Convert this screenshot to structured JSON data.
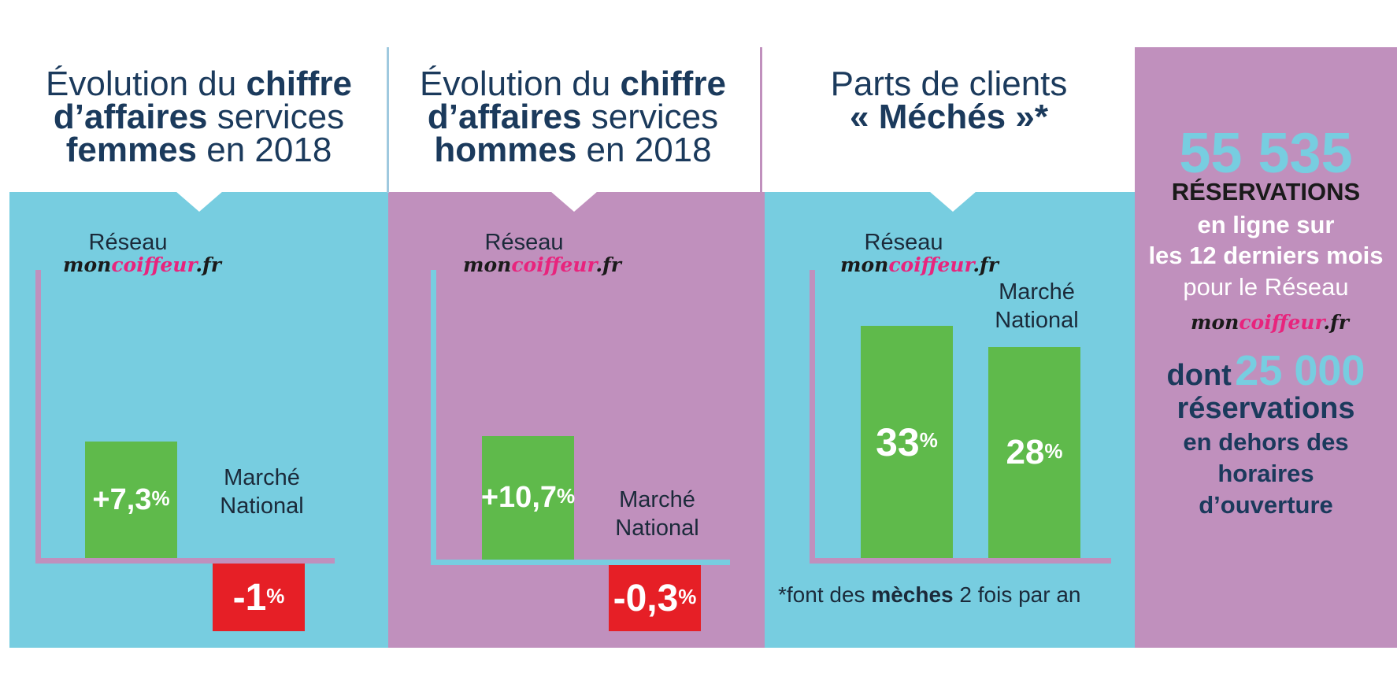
{
  "colors": {
    "teal": "#77cde0",
    "purple": "#c090bd",
    "green": "#5fba4b",
    "red": "#e61f26",
    "navy": "#1b3a5c",
    "pink": "#e8247d"
  },
  "logo": {
    "part1": "mon",
    "part2": "coiffeur",
    "part3": ".fr"
  },
  "panels": [
    {
      "title": {
        "l1a": "Évolution du ",
        "l1b": "chiffre",
        "l2a": "d’affaires",
        "l2b": " services",
        "l3a": "femmes",
        "l3b": " en 2018"
      },
      "reseau_label": "Réseau",
      "marche_l1": "Marché",
      "marche_l2": "National"
    },
    {
      "title": {
        "l1a": "Évolution du ",
        "l1b": "chiffre",
        "l2a": "d’affaires",
        "l2b": " services",
        "l3a": "hommes",
        "l3b": " en 2018"
      },
      "reseau_label": "Réseau",
      "marche_l1": "Marché",
      "marche_l2": "National"
    },
    {
      "title": {
        "l1": "Parts de clients",
        "l2": "« Méchés »*"
      },
      "reseau_label": "Réseau",
      "marche_l1": "Marché",
      "marche_l2": "National",
      "note_a": "*font des ",
      "note_b": "mèches",
      "note_c": " 2 fois par an"
    }
  ],
  "chart_data": [
    {
      "type": "bar",
      "categories": [
        "Réseau moncoiffeur.fr",
        "Marché National"
      ],
      "values": [
        7.3,
        -1
      ],
      "labels": [
        "+7,3",
        "-1"
      ],
      "unit": "%",
      "title": "Évolution du chiffre d’affaires services femmes en 2018"
    },
    {
      "type": "bar",
      "categories": [
        "Réseau moncoiffeur.fr",
        "Marché National"
      ],
      "values": [
        10.7,
        -0.3
      ],
      "labels": [
        "+10,7",
        "-0,3"
      ],
      "unit": "%",
      "title": "Évolution du chiffre d’affaires services hommes en 2018"
    },
    {
      "type": "bar",
      "categories": [
        "Réseau moncoiffeur.fr",
        "Marché National"
      ],
      "values": [
        33,
        28
      ],
      "labels": [
        "33",
        "28"
      ],
      "unit": "%",
      "title": "Parts de clients « Méchés »*"
    }
  ],
  "stats": {
    "big_number": "55 535",
    "line1": "RÉSERVATIONS",
    "line2": "en ligne sur",
    "line3": "les 12 derniers mois",
    "line4": "pour le Réseau",
    "dont": "dont",
    "second_number": "25 000",
    "line5": "réservations",
    "line6": "en dehors des",
    "line7": "horaires",
    "line8": "d’ouverture"
  }
}
